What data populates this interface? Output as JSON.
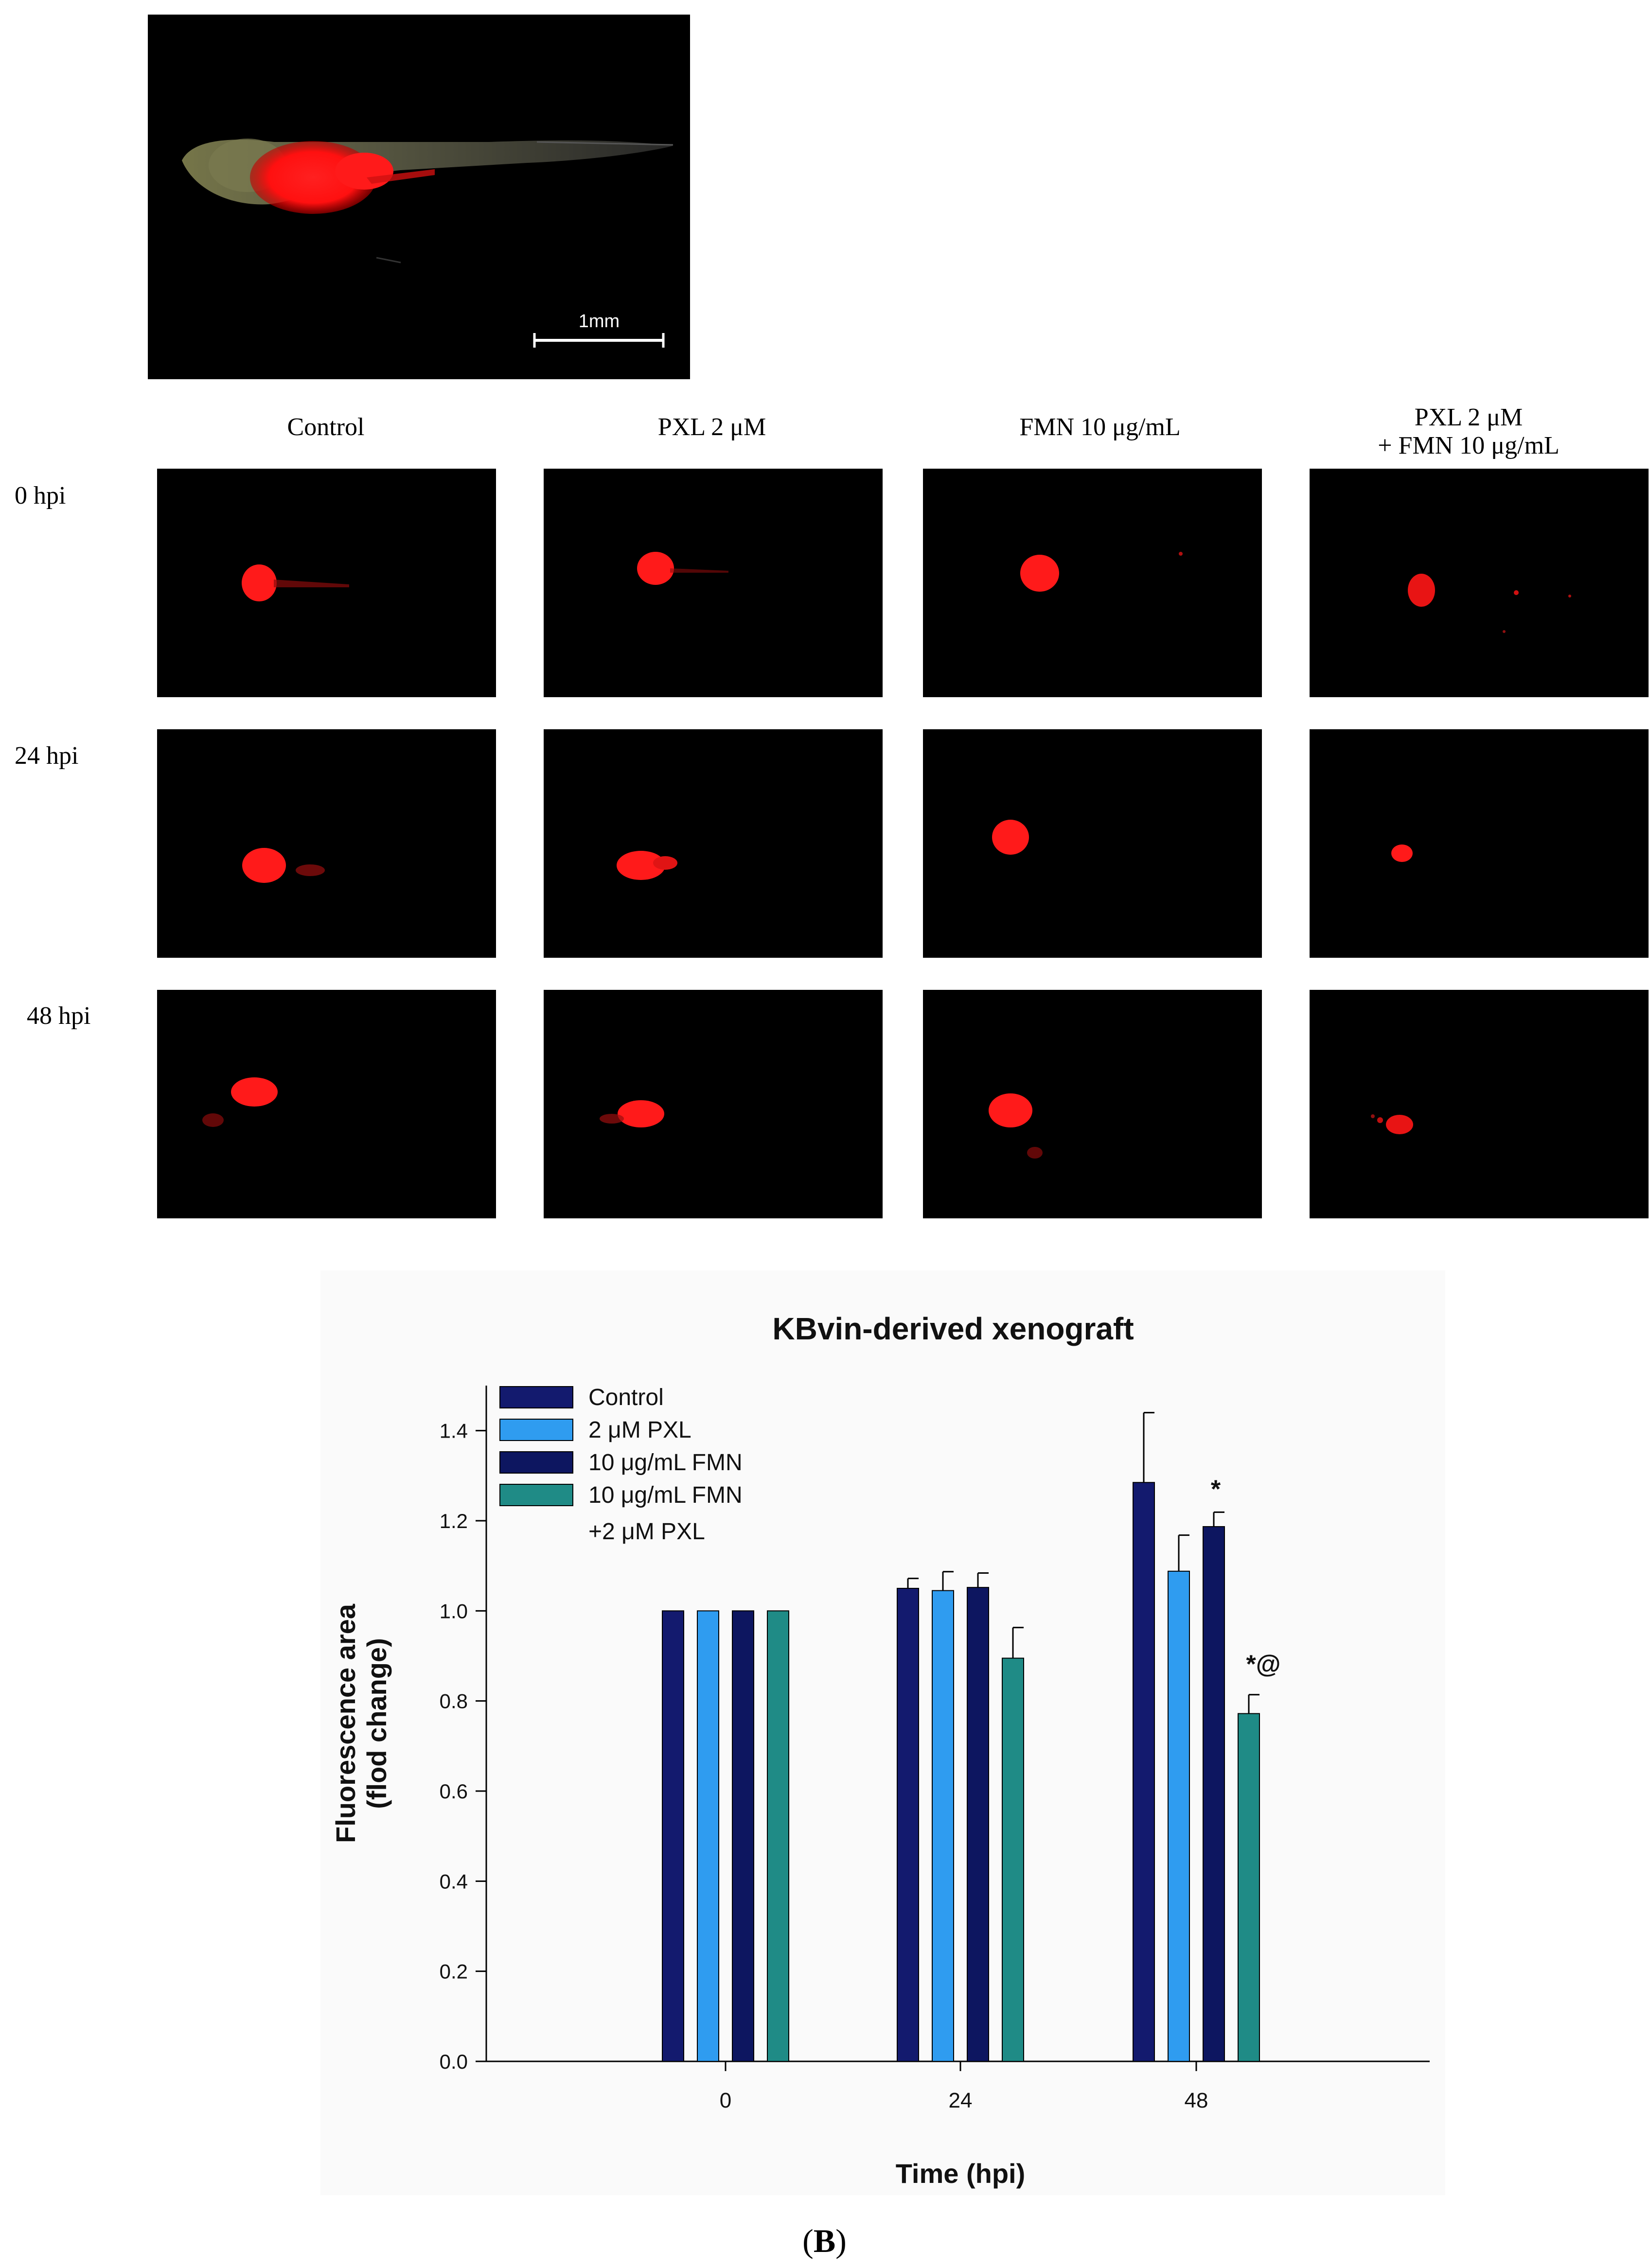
{
  "top_image": {
    "scale_bar_label": "1mm"
  },
  "grid": {
    "columns": [
      "Control",
      "PXL 2 μM",
      "FMN 10 μg/mL",
      "PXL 2 μM\n+ FMN 10 μg/mL"
    ],
    "column_lines": [
      [
        "Control"
      ],
      [
        "PXL 2 μM"
      ],
      [
        "FMN 10 μg/mL"
      ],
      [
        "PXL 2 μM",
        "+ FMN 10 μg/mL"
      ]
    ],
    "rows": [
      "0 hpi",
      "24 hpi",
      "48 hpi"
    ]
  },
  "colors": {
    "control": "#131a6e",
    "pxl": "#2f9cf0",
    "fmn": "#0d1660",
    "combo": "#1f8b86",
    "fluorescence": "#ff1a1a"
  },
  "chart_data": {
    "type": "bar",
    "title": "KBvin-derived xenograft",
    "xlabel": "Time (hpi)",
    "ylabel_lines": [
      "Fluorescence area",
      "(flod change)"
    ],
    "categories": [
      "0",
      "24",
      "48"
    ],
    "ylim": [
      0,
      1.5
    ],
    "yticks": [
      "0.0",
      "0.2",
      "0.4",
      "0.6",
      "0.8",
      "1.0",
      "1.2",
      "1.4"
    ],
    "series": [
      {
        "name": "Control",
        "values": [
          1.0,
          1.05,
          1.285
        ],
        "errors": [
          0,
          0.022,
          0.155
        ]
      },
      {
        "name": "2 μM PXL",
        "values": [
          1.0,
          1.045,
          1.088
        ],
        "errors": [
          0,
          0.042,
          0.08
        ]
      },
      {
        "name": "10 μg/mL FMN",
        "values": [
          1.0,
          1.052,
          1.187
        ],
        "errors": [
          0,
          0.032,
          0.032
        ]
      },
      {
        "name": "10 μg/mL FMN",
        "values": [
          1.0,
          0.895,
          0.772
        ],
        "errors": [
          0,
          0.068,
          0.042
        ]
      }
    ],
    "legend_extra_line": "+2 μM PXL",
    "legend_position": "top-left",
    "annotations": [
      "*",
      "*@"
    ],
    "figure_label": "(B)",
    "figure_letter": "B"
  }
}
